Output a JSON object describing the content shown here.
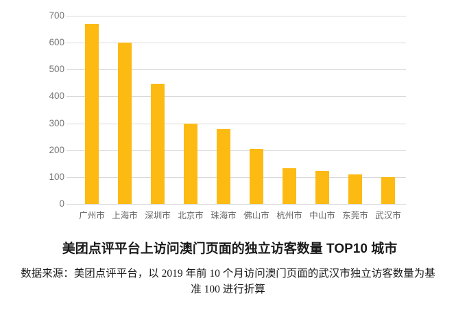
{
  "chart_data": {
    "type": "bar",
    "title": "美团点评平台上访问澳门页面的独立访客数量 TOP10 城市",
    "categories": [
      "广州市",
      "上海市",
      "深圳市",
      "北京市",
      "珠海市",
      "佛山市",
      "杭州市",
      "中山市",
      "东莞市",
      "武汉市"
    ],
    "values": [
      670,
      600,
      448,
      298,
      278,
      205,
      134,
      122,
      110,
      100
    ],
    "xlabel": "",
    "ylabel": "",
    "ylim": [
      0,
      700
    ],
    "yticks": [
      0,
      100,
      200,
      300,
      400,
      500,
      600,
      700
    ],
    "grid": "horizontal",
    "legend_position": "none"
  },
  "source": {
    "lines": [
      "数据来源：美团点评平台，以 2019 年前 10 个月访问澳门页面的武汉市独立访客数量为基",
      "准 100 进行折算"
    ]
  },
  "colors": {
    "bar": "#fcba13",
    "gridline": "#d9d9d9",
    "ytick_label": "#757575",
    "xtick_label": "#666666",
    "background": "#ffffff",
    "title_text": "#1a1a1a"
  }
}
